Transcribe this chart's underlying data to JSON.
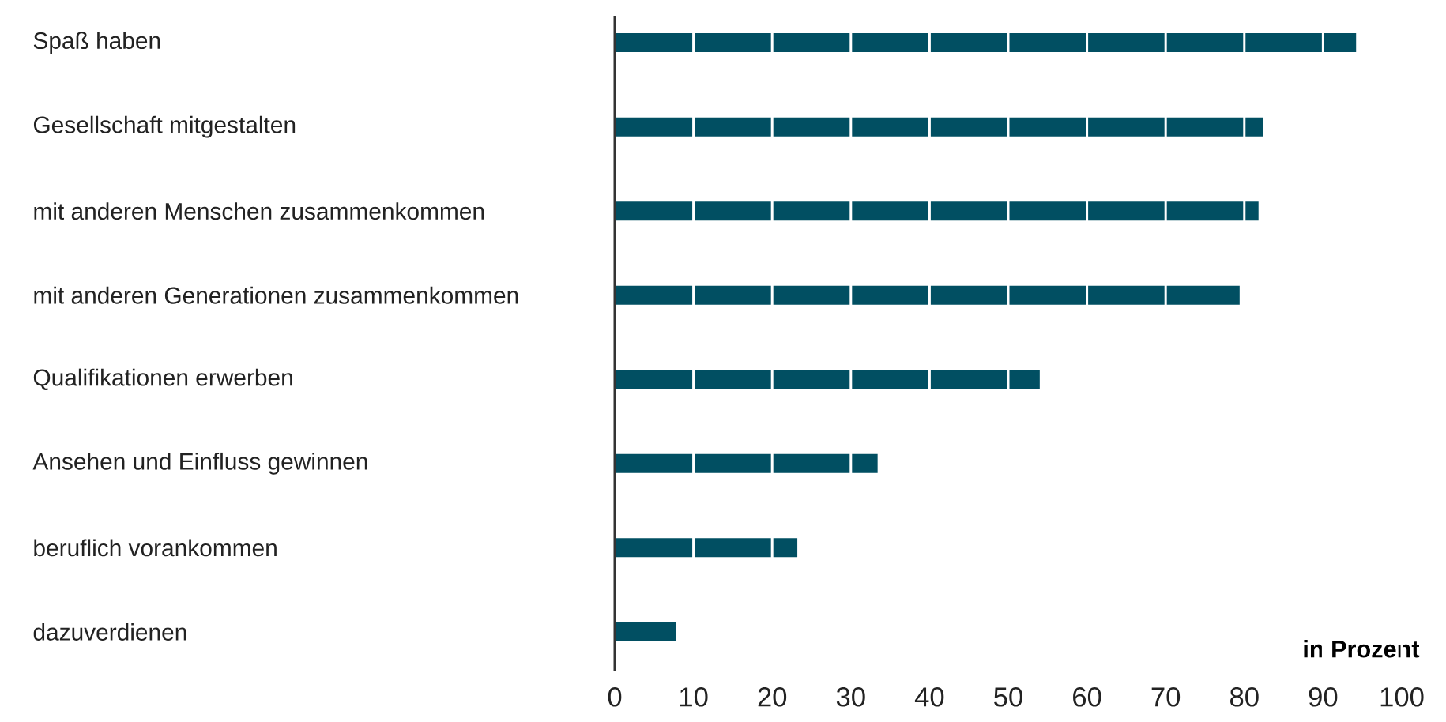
{
  "chart_data": {
    "type": "bar",
    "orientation": "horizontal",
    "xlabel": "in Prozent",
    "categories": [
      "Spaß haben",
      "Gesellschaft mitgestalten",
      "mit anderen Menschen zusammenkommen",
      "mit anderen Generationen zusammenkommen",
      "Qualifikationen erwerben",
      "Ansehen und Einfluss gewinnen",
      "beruflich vorankommen",
      "dazuverdienen"
    ],
    "values": [
      94.2,
      82.4,
      81.8,
      79.4,
      54.0,
      33.4,
      23.2,
      7.8
    ],
    "color": "#014f62",
    "xlim": [
      0,
      100
    ],
    "xticks": [
      0,
      10,
      20,
      30,
      40,
      50,
      60,
      70,
      80,
      90,
      100
    ],
    "grid": "x"
  }
}
